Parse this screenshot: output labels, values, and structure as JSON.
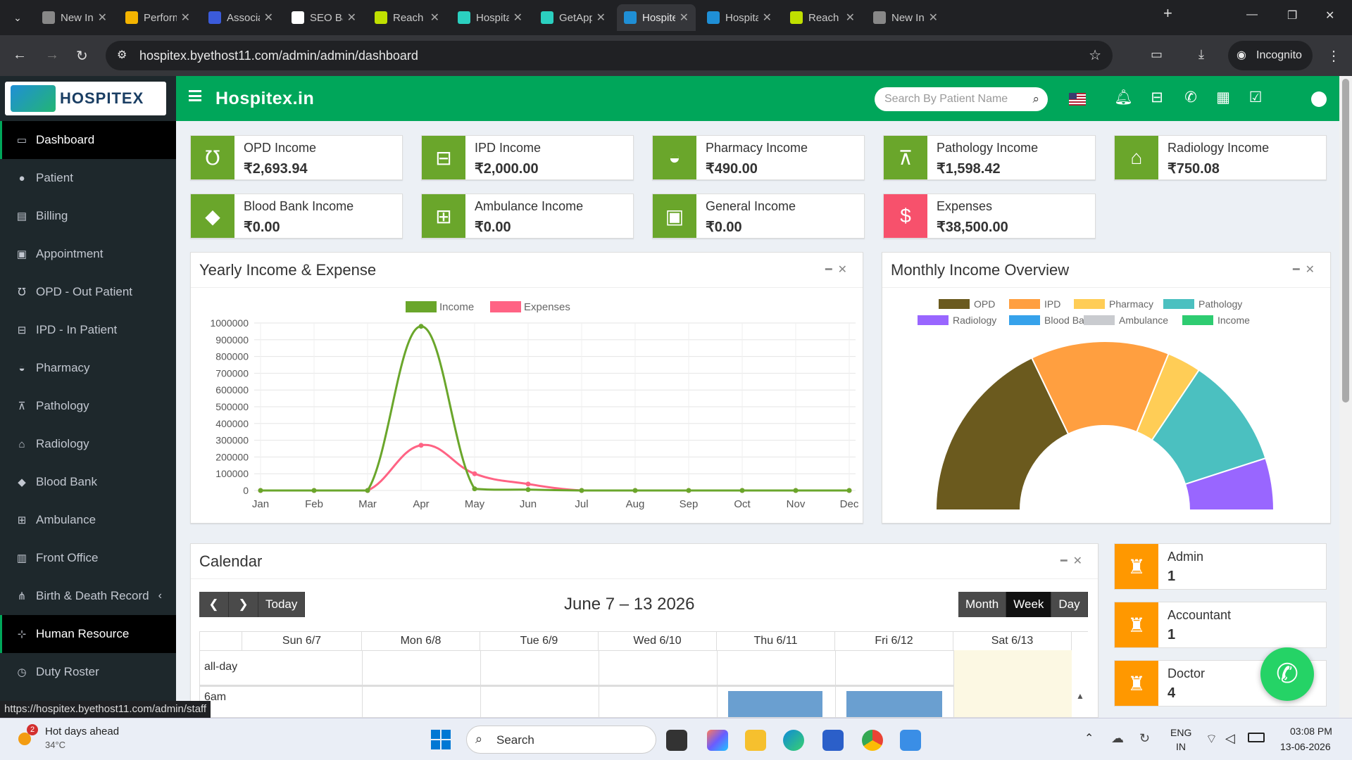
{
  "browser": {
    "tabs": [
      {
        "label": "New Inco",
        "color": "#888888"
      },
      {
        "label": "Perform",
        "color": "#f4b400"
      },
      {
        "label": "Associat",
        "color": "#3b5bdb"
      },
      {
        "label": "SEO Bac",
        "color": "#ffffff"
      },
      {
        "label": "Reach Er",
        "color": "#c0e000"
      },
      {
        "label": "Hospital",
        "color": "#2bd0c0"
      },
      {
        "label": "GetApp",
        "color": "#2bd0c0"
      },
      {
        "label": "Hospite:",
        "color": "#1f8fd6"
      },
      {
        "label": "Hospital",
        "color": "#1f8fd6"
      },
      {
        "label": "Reach Er",
        "color": "#c0e000"
      },
      {
        "label": "New Inco",
        "color": "#888888"
      }
    ],
    "active_tab": 7,
    "url": "hospitex.byethost11.com/admin/admin/dashboard",
    "incognito_label": "Incognito",
    "status_url": "https://hospitex.byethost11.com/admin/staff"
  },
  "app": {
    "logo_text": "HOSPITEX",
    "brand": "Hospitex.in",
    "search_placeholder": "Search By Patient Name"
  },
  "sidebar": {
    "items": [
      {
        "label": "Dashboard",
        "icon": "monitor-icon",
        "glyph": "▭"
      },
      {
        "label": "Patient",
        "icon": "user-icon",
        "glyph": "●"
      },
      {
        "label": "Billing",
        "icon": "file-icon",
        "glyph": "▤"
      },
      {
        "label": "Appointment",
        "icon": "calendar-check-icon",
        "glyph": "▣"
      },
      {
        "label": "OPD - Out Patient",
        "icon": "stethoscope-icon",
        "glyph": "℧"
      },
      {
        "label": "IPD - In Patient",
        "icon": "bed-icon",
        "glyph": "⊟"
      },
      {
        "label": "Pharmacy",
        "icon": "mortar-pestle-icon",
        "glyph": "◒"
      },
      {
        "label": "Pathology",
        "icon": "flask-icon",
        "glyph": "⊼"
      },
      {
        "label": "Radiology",
        "icon": "xray-icon",
        "glyph": "⌂"
      },
      {
        "label": "Blood Bank",
        "icon": "drop-icon",
        "glyph": "◆"
      },
      {
        "label": "Ambulance",
        "icon": "ambulance-icon",
        "glyph": "⊞"
      },
      {
        "label": "Front Office",
        "icon": "building-icon",
        "glyph": "▥"
      },
      {
        "label": "Birth & Death Record",
        "icon": "family-icon",
        "glyph": "⋔"
      },
      {
        "label": "Human Resource",
        "icon": "sitemap-icon",
        "glyph": "⊹"
      },
      {
        "label": "Duty Roster",
        "icon": "clock-icon",
        "glyph": "◷"
      }
    ],
    "active": [
      0,
      13
    ]
  },
  "income_boxes": [
    {
      "label": "OPD Income",
      "value": "₹2,693.94",
      "icon": "stethoscope-icon",
      "glyph": "℧",
      "color": "#6aa62b"
    },
    {
      "label": "IPD Income",
      "value": "₹2,000.00",
      "icon": "bed-icon",
      "glyph": "⊟",
      "color": "#6aa62b"
    },
    {
      "label": "Pharmacy Income",
      "value": "₹490.00",
      "icon": "mortar-pestle-icon",
      "glyph": "◒",
      "color": "#6aa62b"
    },
    {
      "label": "Pathology Income",
      "value": "₹1,598.42",
      "icon": "flask-icon",
      "glyph": "⊼",
      "color": "#6aa62b"
    },
    {
      "label": "Radiology Income",
      "value": "₹750.08",
      "icon": "xray-icon",
      "glyph": "⌂",
      "color": "#6aa62b"
    },
    {
      "label": "Blood Bank Income",
      "value": "₹0.00",
      "icon": "drop-icon",
      "glyph": "◆",
      "color": "#6aa62b"
    },
    {
      "label": "Ambulance Income",
      "value": "₹0.00",
      "icon": "ambulance-icon",
      "glyph": "⊞",
      "color": "#6aa62b"
    },
    {
      "label": "General Income",
      "value": "₹0.00",
      "icon": "money-icon",
      "glyph": "▣",
      "color": "#6aa62b"
    },
    {
      "label": "Expenses",
      "value": "₹38,500.00",
      "icon": "dollar-circle-icon",
      "glyph": "$",
      "color": "#f7516c"
    }
  ],
  "yearly_panel_title": "Yearly Income & Expense",
  "monthly_panel_title": "Monthly Income Overview",
  "chart_data": [
    {
      "type": "line",
      "x": [
        "Jan",
        "Feb",
        "Mar",
        "Apr",
        "May",
        "Jun",
        "Jul",
        "Aug",
        "Sep",
        "Oct",
        "Nov",
        "Dec"
      ],
      "series": [
        {
          "name": "Income",
          "color": "#6aa62b",
          "values": [
            0,
            0,
            0,
            980000,
            10000,
            5000,
            0,
            0,
            0,
            0,
            0,
            0
          ]
        },
        {
          "name": "Expenses",
          "color": "#ff6384",
          "values": [
            0,
            0,
            0,
            270000,
            100000,
            38500,
            0,
            0,
            0,
            0,
            0,
            0
          ]
        }
      ],
      "yticks": [
        "1000000",
        "900000",
        "800000",
        "700000",
        "600000",
        "500000",
        "400000",
        "300000",
        "200000",
        "100000",
        "0"
      ],
      "ylim": [
        0,
        1000000
      ],
      "grid": true,
      "legend": "top"
    },
    {
      "type": "pie",
      "variant": "half-doughnut",
      "legend": "top",
      "labels": [
        "OPD",
        "IPD",
        "Pharmacy",
        "Pathology",
        "Radiology",
        "Blood Bank",
        "Ambulance",
        "Income"
      ],
      "colors": [
        "#6b5a1e",
        "#ff9f40",
        "#ffcd56",
        "#4bc0c0",
        "#9966ff",
        "#36a2eb",
        "#c9cbcf",
        "#2ecc71"
      ],
      "values": [
        2693.94,
        2000.0,
        490.0,
        1598.42,
        750.08,
        0,
        0,
        0
      ]
    }
  ],
  "calendar": {
    "title": "Calendar",
    "range_label": "June 7 – 13 2026",
    "today_label": "Today",
    "views": [
      "Month",
      "Week",
      "Day"
    ],
    "selected_view": 1,
    "days": [
      "Sun 6/7",
      "Mon 6/8",
      "Tue 6/9",
      "Wed 6/10",
      "Thu 6/11",
      "Fri 6/12",
      "Sat 6/13"
    ],
    "all_day_label": "all-day",
    "time_label": "6am"
  },
  "staff_boxes": [
    {
      "label": "Admin",
      "value": "1",
      "icon": "user-secret-icon"
    },
    {
      "label": "Accountant",
      "value": "1",
      "icon": "user-secret-icon"
    },
    {
      "label": "Doctor",
      "value": "4",
      "icon": "user-secret-icon"
    }
  ],
  "taskbar": {
    "weather_title": "Hot days ahead",
    "weather_temp": "34°C",
    "weather_badge": "2",
    "search_label": "Search",
    "lang_top": "ENG",
    "lang_bottom": "IN",
    "time": "03:08 PM",
    "date": "13-06-2026"
  }
}
